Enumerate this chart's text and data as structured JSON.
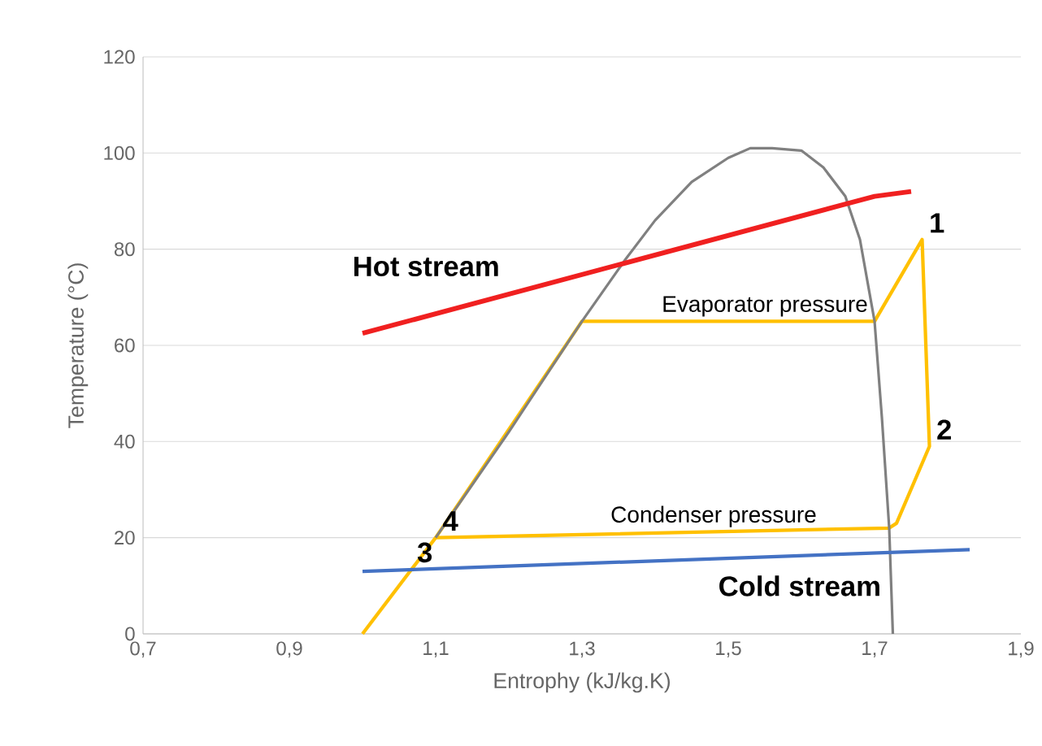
{
  "chart_data": {
    "type": "line",
    "xlabel": "Entrophy (kJ/kg.K)",
    "ylabel": "Temperature (°C)",
    "xlim": [
      0.7,
      1.9
    ],
    "ylim": [
      0,
      120
    ],
    "xticks": [
      {
        "value": 0.7,
        "label": "0,7"
      },
      {
        "value": 0.9,
        "label": "0,9"
      },
      {
        "value": 1.1,
        "label": "1,1"
      },
      {
        "value": 1.3,
        "label": "1,3"
      },
      {
        "value": 1.5,
        "label": "1,5"
      },
      {
        "value": 1.7,
        "label": "1,7"
      },
      {
        "value": 1.9,
        "label": "1,9"
      }
    ],
    "yticks": [
      0,
      20,
      40,
      60,
      80,
      100,
      120
    ],
    "grid": "y",
    "marker": "none",
    "line_style": "solid",
    "series": [
      {
        "color": "#ffc000",
        "x": [
          1.0,
          1.1,
          1.3,
          1.7,
          1.765,
          1.775,
          1.73,
          1.72,
          1.1
        ],
        "values": [
          0,
          20,
          65,
          65,
          82,
          39,
          23,
          22,
          20
        ]
      },
      {
        "color": "#808080",
        "x": [
          1.1,
          1.2,
          1.3,
          1.36,
          1.4,
          1.45,
          1.5,
          1.53,
          1.56,
          1.6,
          1.63,
          1.66,
          1.68,
          1.7,
          1.71,
          1.72,
          1.725
        ],
        "values": [
          20,
          42,
          65,
          78,
          86,
          94,
          99,
          101,
          101,
          100.5,
          97,
          91,
          82,
          65,
          45,
          22,
          0
        ]
      },
      {
        "name": "Hot stream",
        "color": "#f02020",
        "x": [
          1.0,
          1.7,
          1.75
        ],
        "values": [
          62.5,
          91,
          92
        ]
      },
      {
        "name": "Cold stream",
        "color": "#4472c4",
        "x": [
          1.0,
          1.83
        ],
        "values": [
          13,
          17.5
        ]
      }
    ],
    "annotations": [
      {
        "text": "Evaporator pressure",
        "x": 1.55,
        "y": 65
      },
      {
        "text": "Condenser pressure",
        "x": 1.48,
        "y": 21.2
      },
      {
        "text": "1",
        "x": 1.765,
        "y": 82
      },
      {
        "text": "2",
        "x": 1.775,
        "y": 39
      },
      {
        "text": "4",
        "x": 1.1,
        "y": 20
      },
      {
        "text": "3",
        "x": 1.065,
        "y": 13.4
      }
    ]
  }
}
